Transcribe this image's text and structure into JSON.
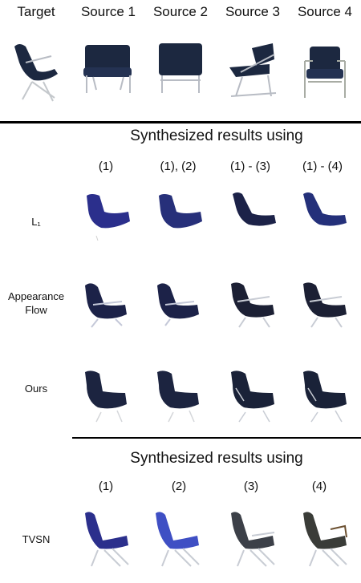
{
  "header": {
    "columns": [
      "Target",
      "Source 1",
      "Source 2",
      "Source 3",
      "Source 4"
    ]
  },
  "section1": {
    "title": "Synthesized results using",
    "columns": [
      "(1)",
      "(1), (2)",
      "(1) - (3)",
      "(1) - (4)"
    ],
    "rows": [
      {
        "label": "L₁"
      },
      {
        "label": "Appearance Flow"
      },
      {
        "label": "Ours"
      }
    ]
  },
  "section2": {
    "title": "Synthesized results using",
    "columns": [
      "(1)",
      "(2)",
      "(3)",
      "(4)"
    ],
    "rows": [
      {
        "label": "TVSN"
      }
    ]
  },
  "colors": {
    "chair_navy": "#1c2840",
    "chair_blue": "#2b2f8c",
    "chair_bright_blue": "#3f4fc4",
    "chair_gray": "#3c4048",
    "rule": "#000000"
  }
}
